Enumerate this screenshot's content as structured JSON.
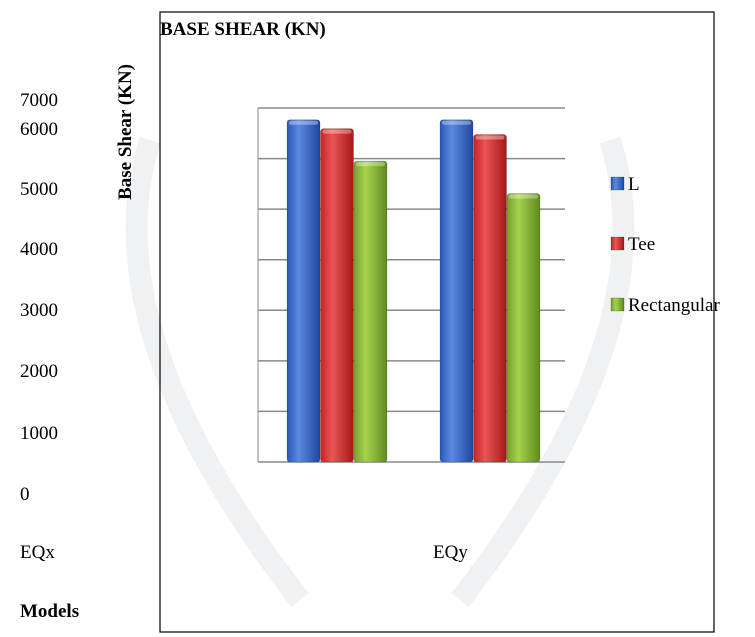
{
  "chart_data": {
    "type": "bar",
    "title": "BASE SHEAR (KN)",
    "xlabel": "Models",
    "ylabel": "Base Shear (KN)",
    "categories": [
      "EQx",
      "EQy"
    ],
    "y_tick_labels": [
      "7000",
      "6000",
      "5000",
      "4000",
      "3000",
      "2000",
      "1000",
      "0"
    ],
    "ylim": [
      0,
      6000
    ],
    "grid": true,
    "legend_position": "right",
    "series": [
      {
        "name": "L",
        "values": [
          5800,
          5800
        ],
        "color": "#3366cc"
      },
      {
        "name": "Tee",
        "values": [
          5650,
          5550
        ],
        "color": "#d93333"
      },
      {
        "name": "Rectangular",
        "values": [
          5100,
          4550
        ],
        "color": "#8db83a"
      }
    ]
  }
}
